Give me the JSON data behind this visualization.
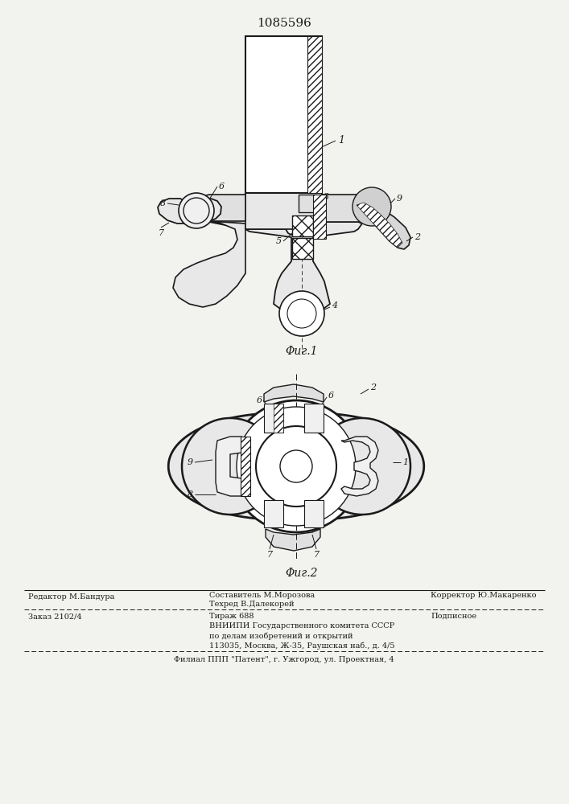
{
  "title": "1085596",
  "fig1_label": "Φиг.1",
  "fig2_label": "Φиг.2",
  "bg_color": "#f2f2ef",
  "line_color": "#1a1a1a",
  "title_fontsize": 11,
  "label_fontsize": 9,
  "part_fontsize": 8,
  "footer_fontsize": 7
}
